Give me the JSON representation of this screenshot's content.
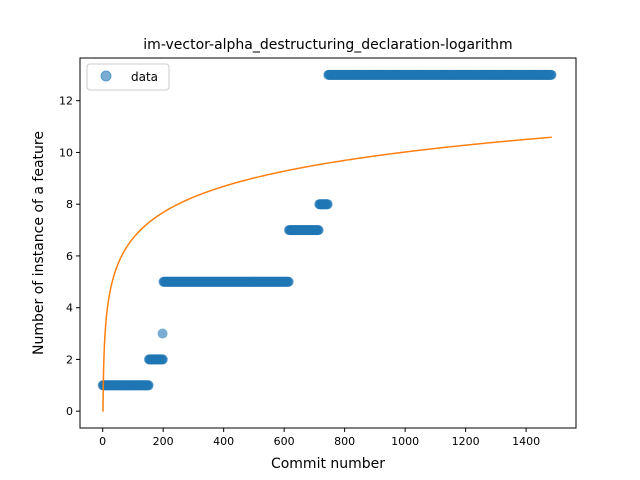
{
  "chart_data": {
    "type": "scatter",
    "title": "im-vector-alpha_destructuring_declaration-logarithm",
    "xlabel": "Commit number",
    "ylabel": "Number of instance of a feature",
    "xlim": [
      -75,
      1565
    ],
    "ylim": [
      -0.65,
      13.65
    ],
    "xticks": [
      0,
      200,
      400,
      600,
      800,
      1000,
      1200,
      1400
    ],
    "yticks": [
      0,
      2,
      4,
      6,
      8,
      10,
      12
    ],
    "legend": {
      "position": "top-left",
      "entries": [
        "data"
      ]
    },
    "grid": false,
    "colors": {
      "data": "#1f77b4",
      "fit": "#ff7f0e"
    },
    "series": [
      {
        "name": "data",
        "kind": "scatter",
        "segments": [
          {
            "x_start": 0,
            "x_end": 152,
            "y": 1
          },
          {
            "x_start": 153,
            "x_end": 200,
            "y": 2
          },
          {
            "x_start": 198,
            "x_end": 198,
            "y": 3
          },
          {
            "x_start": 201,
            "x_end": 615,
            "y": 5
          },
          {
            "x_start": 616,
            "x_end": 715,
            "y": 7
          },
          {
            "x_start": 716,
            "x_end": 745,
            "y": 8
          },
          {
            "x_start": 746,
            "x_end": 1485,
            "y": 13
          }
        ]
      },
      {
        "kind": "line",
        "fit": {
          "model": "logarithmic",
          "a": 1.45,
          "b": 0.0,
          "x_range": [
            1,
            1485
          ]
        }
      }
    ]
  }
}
